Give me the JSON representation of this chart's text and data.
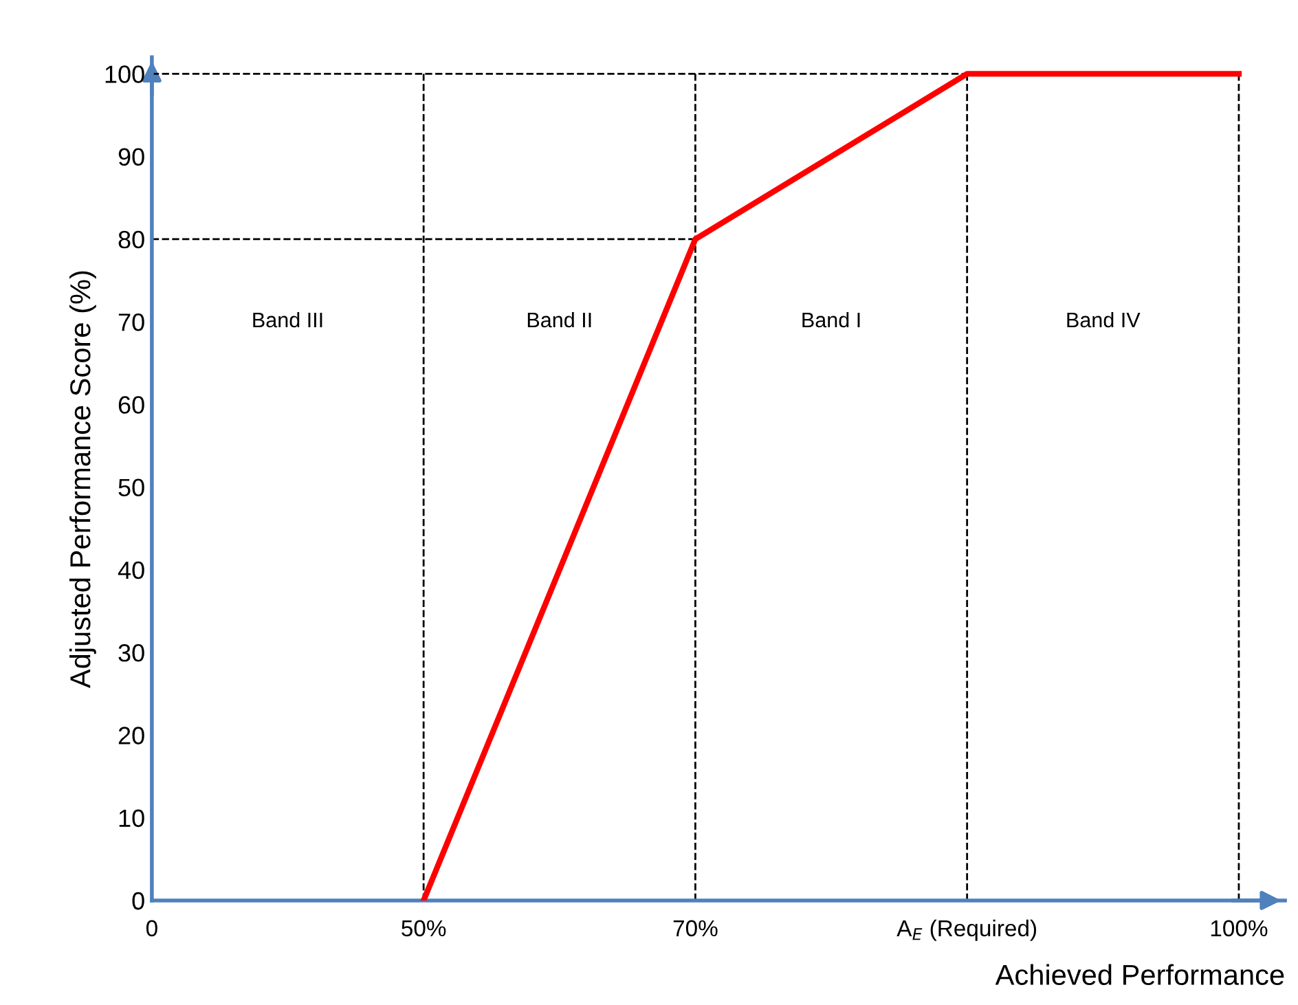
{
  "chart_data": {
    "type": "line",
    "xlabel": "Achieved Performance",
    "ylabel": "Adjusted Performance Score (%)",
    "categories": [
      "0",
      "50%",
      "70%",
      "A$_{E}$ (Required)",
      "100%"
    ],
    "series": [
      {
        "color": "#ff0000",
        "values": [
          null,
          0,
          80,
          100,
          100
        ]
      }
    ],
    "ylim": [
      0,
      102
    ],
    "yticks": [
      0,
      10,
      20,
      30,
      40,
      50,
      60,
      70,
      80,
      90,
      100
    ],
    "ref_lines": [
      {
        "axis": "x",
        "value": "50%",
        "line_style": "dashed",
        "color": "#000000"
      },
      {
        "axis": "x",
        "value": "70%",
        "line_style": "dashed",
        "color": "#000000"
      },
      {
        "axis": "x",
        "value": "A$_{E}$ (Required)",
        "line_style": "dashed",
        "color": "#000000"
      },
      {
        "axis": "x",
        "value": "100%",
        "line_style": "dashed",
        "color": "#000000"
      },
      {
        "axis": "y",
        "value": 100,
        "line_style": "dashed",
        "color": "#000000"
      },
      {
        "axis": "y",
        "value": 80,
        "line_style": "dashed",
        "color": "#000000"
      }
    ],
    "annotations": [
      "Band III",
      "Band II",
      "Band I",
      "Band IV"
    ],
    "grid": false,
    "legend": false,
    "marker": "none",
    "line_style": "solid"
  }
}
